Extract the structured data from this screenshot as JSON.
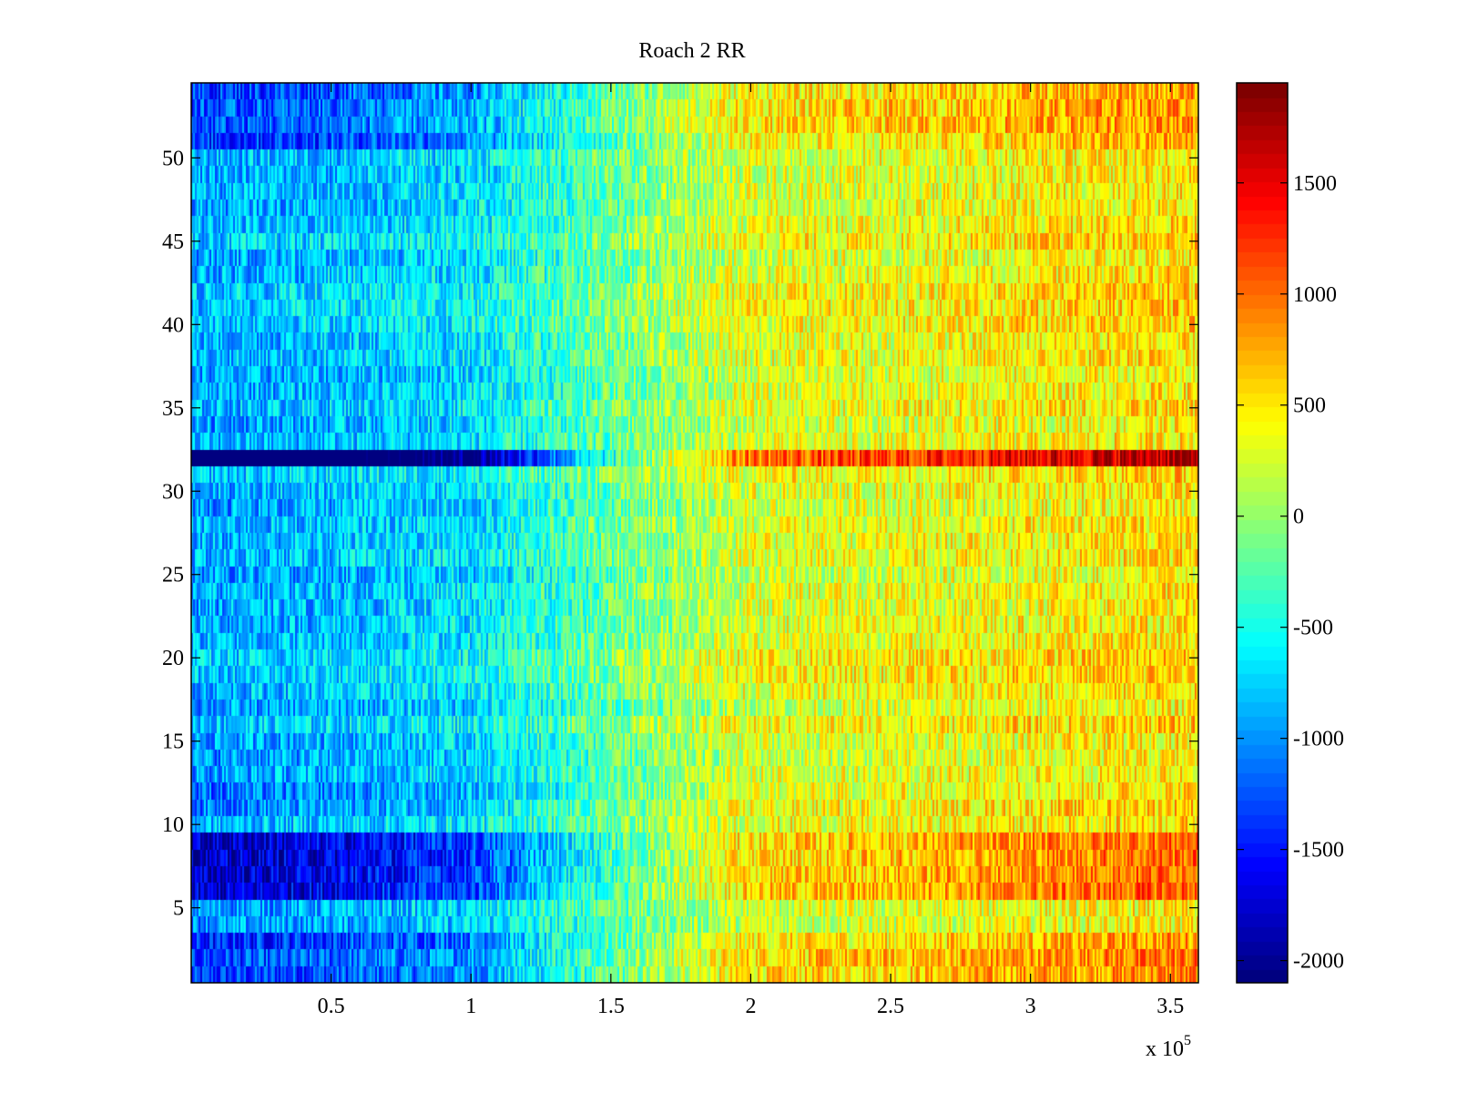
{
  "chart_data": {
    "type": "heatmap",
    "title": "Roach 2 RR",
    "xlabel": "",
    "ylabel": "",
    "x_range": [
      0,
      360000
    ],
    "y_range": [
      0.5,
      54.5
    ],
    "rows": 54,
    "x_ticks": [
      50000,
      100000,
      150000,
      200000,
      250000,
      300000,
      350000
    ],
    "x_tick_labels": [
      "0.5",
      "1",
      "1.5",
      "2",
      "2.5",
      "3",
      "3.5"
    ],
    "x_exponent_label": "x 10",
    "x_exponent_power": "5",
    "y_ticks": [
      5,
      10,
      15,
      20,
      25,
      30,
      35,
      40,
      45,
      50
    ],
    "y_tick_labels": [
      "5",
      "10",
      "15",
      "20",
      "25",
      "30",
      "35",
      "40",
      "45",
      "50"
    ],
    "colormap": "jet",
    "clim": [
      -2100,
      1950
    ],
    "colorbar_ticks": [
      -2000,
      -1500,
      -1000,
      -500,
      0,
      500,
      1000,
      1500
    ],
    "colorbar_tick_labels": [
      "-2000",
      "-1500",
      "-1000",
      "-500",
      "0",
      "500",
      "1000",
      "1500"
    ],
    "trend": {
      "x_anchor": [
        0,
        50000,
        100000,
        150000,
        200000,
        250000,
        300000,
        360000
      ],
      "value_anchor": [
        -900,
        -800,
        -650,
        -150,
        300,
        350,
        450,
        550
      ]
    },
    "row_offsets": [
      {
        "rows": [
          1,
          2,
          3
        ],
        "scale": 1.6
      },
      {
        "rows": [
          6,
          7,
          8,
          9
        ],
        "scale": 2.0
      },
      {
        "rows": [
          11,
          12
        ],
        "scale": 1.2
      },
      {
        "rows": [
          32
        ],
        "scale": 3.2
      },
      {
        "rows": [
          51,
          52,
          53,
          54
        ],
        "scale": 1.5
      }
    ],
    "noise_amplitude": 420
  }
}
